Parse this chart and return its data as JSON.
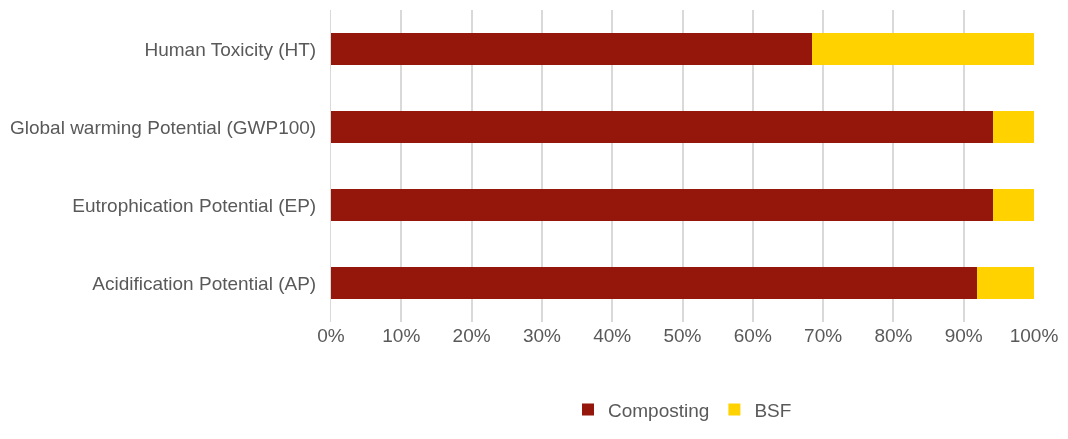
{
  "chart_data": {
    "type": "bar",
    "orientation": "horizontal",
    "stacked": true,
    "categories": [
      "Human Toxicity (HT)",
      "Global warming Potential (GWP100)",
      "Eutrophication Potential (EP)",
      "Acidification Potential (AP)"
    ],
    "series": [
      {
        "name": "Composting",
        "color": "#95160a",
        "values": [
          68.4,
          94.2,
          94.2,
          91.9
        ]
      },
      {
        "name": "BSF",
        "color": "#ffd200",
        "values": [
          31.6,
          5.8,
          5.8,
          8.1
        ]
      }
    ],
    "xlim": [
      0,
      100
    ],
    "xticks": [
      {
        "value": 0,
        "label": "0%"
      },
      {
        "value": 10,
        "label": "10%"
      },
      {
        "value": 20,
        "label": "20%"
      },
      {
        "value": 30,
        "label": "30%"
      },
      {
        "value": 40,
        "label": "40%"
      },
      {
        "value": 50,
        "label": "50%"
      },
      {
        "value": 60,
        "label": "60%"
      },
      {
        "value": 70,
        "label": "70%"
      },
      {
        "value": 80,
        "label": "80%"
      },
      {
        "value": 90,
        "label": "90%"
      },
      {
        "value": 100,
        "label": "100%"
      }
    ],
    "grid": "x",
    "legend": "bottom"
  }
}
